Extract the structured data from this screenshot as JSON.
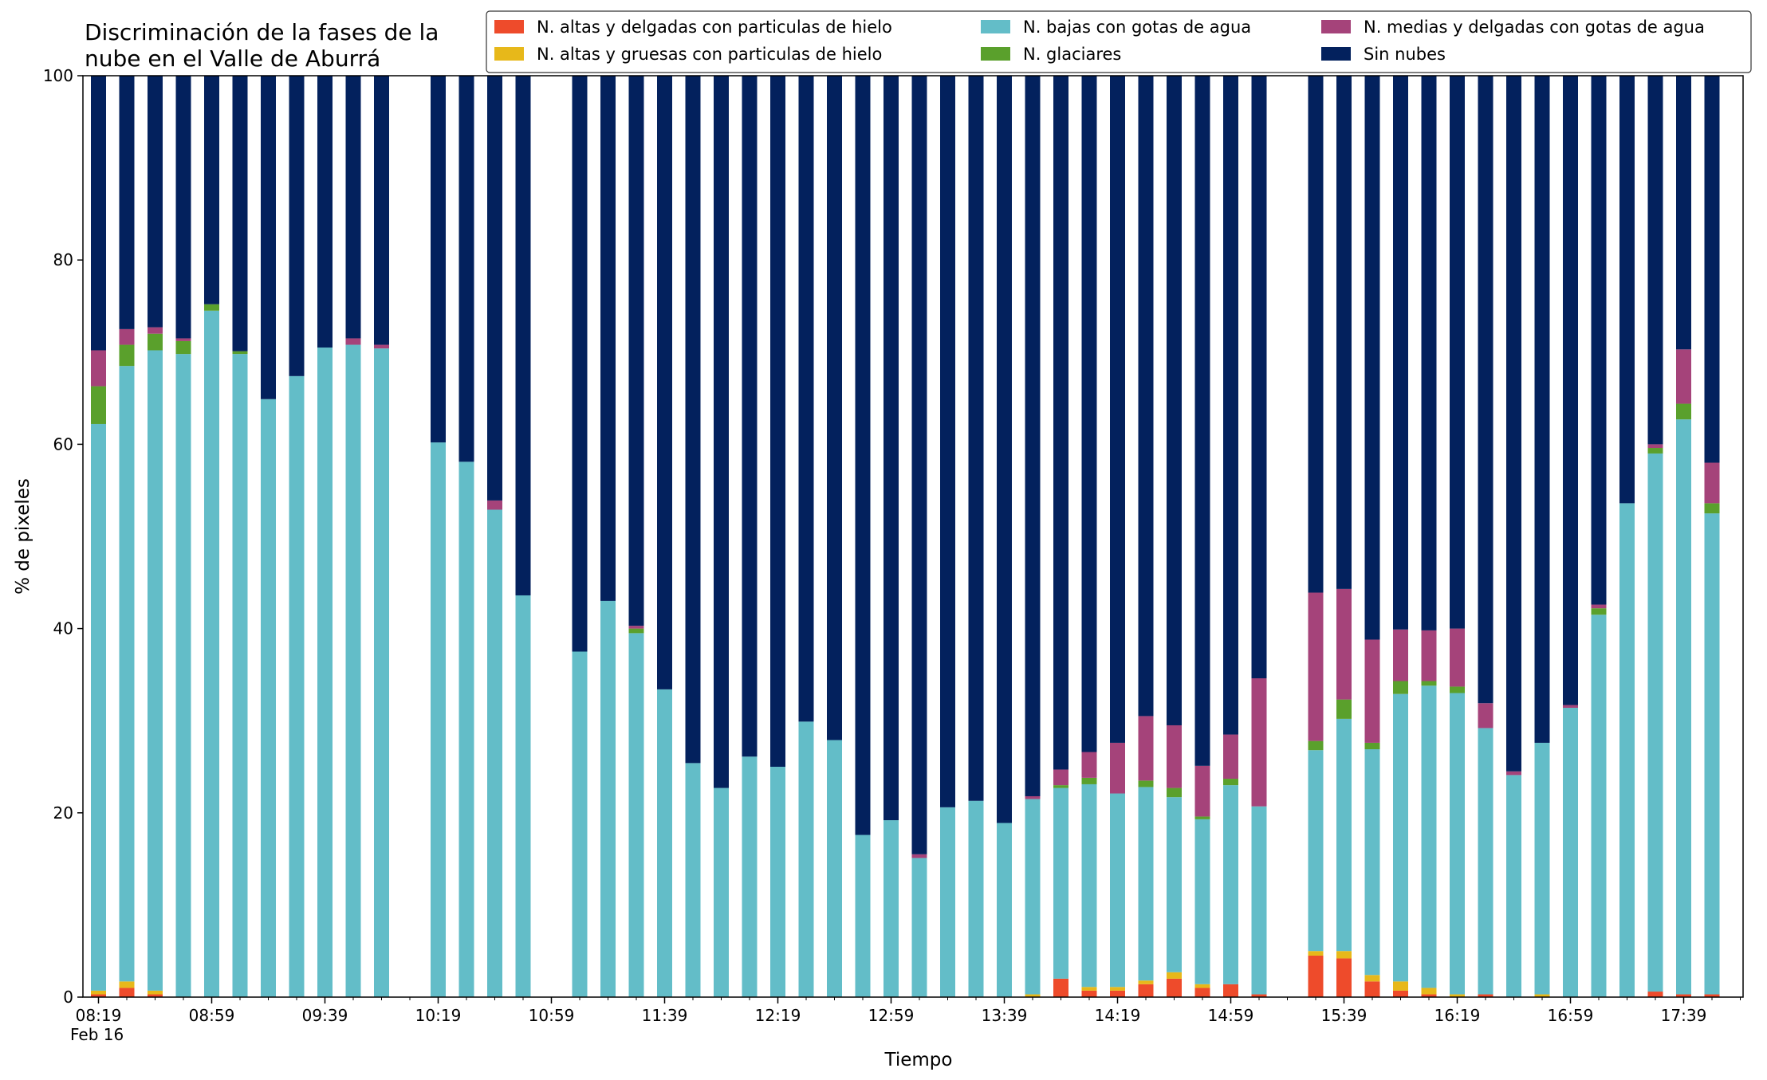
{
  "chart_data": {
    "type": "bar",
    "stacked": true,
    "title_lines": [
      "Discriminación de la fases de la",
      "nube en el Valle de Aburrá"
    ],
    "xlabel": "Tiempo",
    "ylabel": "% de pixeles",
    "ylim": [
      0,
      100
    ],
    "yticks": [
      0,
      20,
      40,
      60,
      80,
      100
    ],
    "x_minutes_start": "08:19",
    "bar_interval_minutes": 10,
    "x_tick_labels": [
      "08:19",
      "08:59",
      "09:39",
      "10:19",
      "10:59",
      "11:39",
      "12:19",
      "12:59",
      "13:39",
      "14:19",
      "14:59",
      "15:39",
      "16:19",
      "16:59",
      "17:39"
    ],
    "x_date_label": "Feb 16",
    "grid": false,
    "legend_placement": "top-right",
    "slots": [
      "08:19",
      "08:29",
      "08:39",
      "08:49",
      "08:59",
      "09:09",
      "09:19",
      "09:29",
      "09:39",
      "09:49",
      "09:59",
      "10:09",
      "10:19",
      "10:29",
      "10:39",
      "10:49",
      "10:59",
      "11:09",
      "11:19",
      "11:29",
      "11:39",
      "11:49",
      "11:59",
      "12:09",
      "12:19",
      "12:29",
      "12:39",
      "12:49",
      "12:59",
      "13:09",
      "13:19",
      "13:29",
      "13:39",
      "13:49",
      "13:59",
      "14:09",
      "14:19",
      "14:29",
      "14:39",
      "14:49",
      "14:59",
      "15:09",
      "15:19",
      "15:29",
      "15:39",
      "15:49",
      "15:59",
      "16:09",
      "16:19",
      "16:29",
      "16:39",
      "16:49",
      "16:59",
      "17:09",
      "17:19",
      "17:29",
      "17:39",
      "17:49"
    ],
    "series": [
      {
        "name": "N. altas y delgadas con particulas de hielo",
        "color": "#ee4b2b",
        "values": [
          0.3,
          1.0,
          0.3,
          0,
          0,
          0,
          0,
          0,
          0,
          0,
          0,
          null,
          0,
          0,
          0,
          0,
          null,
          0,
          0,
          0,
          0,
          0,
          0,
          0,
          0,
          0,
          0,
          0,
          0,
          0,
          0,
          0,
          0,
          0,
          2.0,
          0.7,
          0.7,
          1.4,
          2.0,
          1.0,
          1.4,
          0.3,
          null,
          4.5,
          4.2,
          1.7,
          0.7,
          0.3,
          0,
          0.3,
          0,
          0,
          0,
          0,
          0,
          0.6,
          0.3,
          0.3
        ]
      },
      {
        "name": "N. altas y gruesas con particulas de hielo",
        "color": "#e7b81a",
        "values": [
          0.4,
          0.7,
          0.4,
          0,
          0,
          0,
          0,
          0,
          0,
          0,
          0,
          null,
          0,
          0,
          0,
          0,
          null,
          0,
          0,
          0,
          0,
          0,
          0,
          0,
          0,
          0,
          0,
          0,
          0,
          0,
          0,
          0,
          0,
          0.3,
          0,
          0.4,
          0.4,
          0.4,
          0.7,
          0.4,
          0,
          0,
          null,
          0.5,
          0.8,
          0.7,
          1.0,
          0.7,
          0.3,
          0,
          0,
          0.3,
          0,
          0,
          0,
          0,
          0,
          0
        ]
      },
      {
        "name": "N. bajas con gotas de agua",
        "color": "#63bdc8",
        "values": [
          61.5,
          66.8,
          69.5,
          69.8,
          74.5,
          69.8,
          64.9,
          67.4,
          70.5,
          70.8,
          70.4,
          null,
          60.2,
          58.1,
          52.9,
          43.6,
          null,
          37.5,
          43.0,
          39.5,
          33.4,
          25.4,
          22.7,
          26.1,
          25.0,
          29.9,
          27.9,
          17.6,
          19.2,
          15.1,
          20.6,
          21.3,
          18.9,
          21.2,
          20.7,
          22.0,
          21.0,
          21.0,
          19.0,
          17.9,
          21.6,
          20.4,
          null,
          21.8,
          25.2,
          24.5,
          31.2,
          32.8,
          32.7,
          28.9,
          24.1,
          27.3,
          31.4,
          41.5,
          53.6,
          58.4,
          62.4,
          52.2
        ]
      },
      {
        "name": "N. glaciares",
        "color": "#5aa02c",
        "values": [
          4.1,
          2.3,
          1.8,
          1.4,
          0.7,
          0.3,
          0,
          0,
          0,
          0,
          0,
          null,
          0,
          0,
          0,
          0,
          null,
          0,
          0,
          0.5,
          0,
          0,
          0,
          0,
          0,
          0,
          0,
          0,
          0,
          0,
          0,
          0,
          0,
          0,
          0.3,
          0.7,
          0,
          0.7,
          1.0,
          0.3,
          0.7,
          0,
          null,
          1.0,
          2.1,
          0.7,
          1.4,
          0.5,
          0.7,
          0,
          0,
          0,
          0,
          0.7,
          0,
          0.6,
          1.7,
          1.1
        ]
      },
      {
        "name": "N. medias y delgadas con gotas de agua",
        "color": "#a5437a",
        "values": [
          3.9,
          1.7,
          0.7,
          0.3,
          0,
          0,
          0,
          0,
          0,
          0.7,
          0.4,
          null,
          0,
          0,
          1.0,
          0,
          null,
          0,
          0,
          0.3,
          0,
          0,
          0,
          0,
          0,
          0,
          0,
          0,
          0,
          0.4,
          0,
          0,
          0,
          0.3,
          1.7,
          2.8,
          5.5,
          7.0,
          6.8,
          5.5,
          4.8,
          13.9,
          null,
          16.1,
          12.0,
          11.2,
          5.6,
          5.5,
          6.3,
          2.7,
          0.4,
          0,
          0.3,
          0.4,
          0,
          0.4,
          5.9,
          4.4
        ]
      },
      {
        "name": "Sin nubes",
        "color": "#03215d",
        "values": [
          29.8,
          27.5,
          27.3,
          28.5,
          24.8,
          29.9,
          35.1,
          32.6,
          29.5,
          28.5,
          29.2,
          null,
          39.8,
          41.9,
          46.1,
          56.4,
          null,
          62.5,
          57.0,
          59.7,
          66.6,
          74.6,
          77.3,
          73.9,
          75.0,
          70.1,
          72.1,
          82.4,
          80.8,
          84.5,
          79.4,
          78.7,
          81.1,
          78.2,
          75.3,
          73.4,
          72.4,
          69.5,
          70.5,
          74.9,
          71.5,
          65.4,
          null,
          56.1,
          55.7,
          61.2,
          60.1,
          60.2,
          60.0,
          68.1,
          75.5,
          72.4,
          68.3,
          57.4,
          46.4,
          40.0,
          29.7,
          42.0
        ]
      }
    ]
  }
}
